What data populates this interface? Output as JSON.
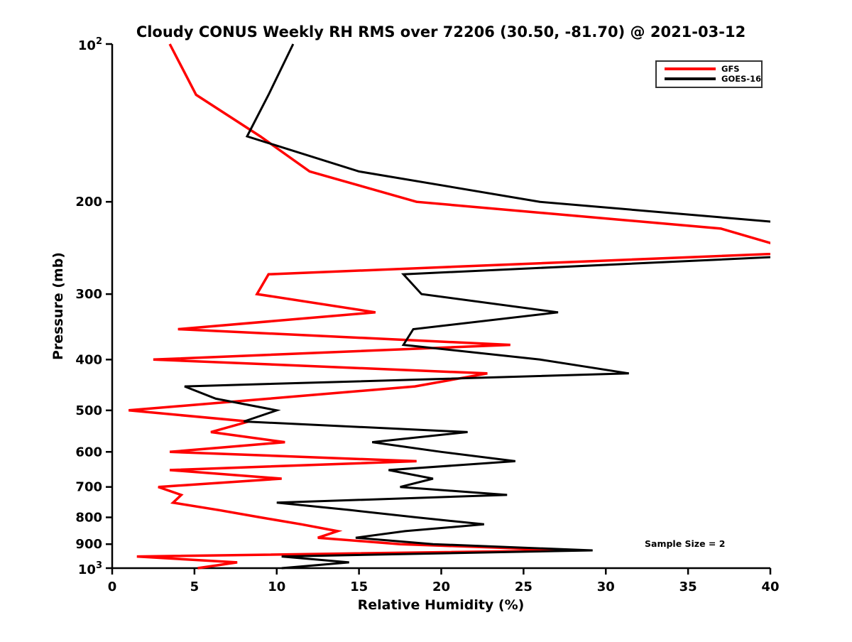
{
  "window": {
    "background": "#ffffff"
  },
  "chart_data": {
    "type": "line",
    "title": "Cloudy CONUS Weekly RH RMS over 72206 (30.50, -81.70) @ 2021-03-12",
    "xlabel": "Relative Humidity (%)",
    "ylabel": "Pressure (mb)",
    "x_axis": {
      "min": 0,
      "max": 40,
      "ticks": [
        0,
        5,
        10,
        15,
        20,
        25,
        30,
        35,
        40
      ]
    },
    "y_axis": {
      "scale": "log",
      "min": 100,
      "max": 1000,
      "inverted": true,
      "ticks": [
        100,
        200,
        300,
        400,
        500,
        600,
        700,
        800,
        900,
        1000
      ],
      "tick_labels": [
        "10^2",
        "200",
        "300",
        "400",
        "500",
        "600",
        "700",
        "800",
        "900",
        "10^3"
      ]
    },
    "grid": false,
    "legend_position": "top-right",
    "annotation": "Sample Size = 2",
    "pressure_levels_mb": [
      100,
      125,
      150,
      175,
      200,
      225,
      250,
      275,
      300,
      325,
      350,
      375,
      400,
      425,
      450,
      475,
      500,
      525,
      550,
      575,
      600,
      625,
      650,
      675,
      700,
      725,
      750,
      775,
      800,
      825,
      850,
      875,
      900,
      925,
      950,
      975,
      1000
    ],
    "series": [
      {
        "name": "GFS",
        "color": "#ff0000",
        "line_width": 3.5,
        "values": [
          3.5,
          5.1,
          9.0,
          12.0,
          18.5,
          37.0,
          42.0,
          9.5,
          8.8,
          16.0,
          4.0,
          24.2,
          2.5,
          22.8,
          18.4,
          9.5,
          1.0,
          8.3,
          6.0,
          10.5,
          3.5,
          18.5,
          3.5,
          10.3,
          2.8,
          4.2,
          3.7,
          6.5,
          9.0,
          11.5,
          13.7,
          12.5,
          17.5,
          28.0,
          1.5,
          7.6,
          5.2
        ]
      },
      {
        "name": "GOES-16",
        "color": "#000000",
        "line_width": 3.0,
        "values": [
          11.0,
          9.5,
          8.2,
          15.0,
          26.0,
          45.0,
          46.0,
          17.7,
          18.8,
          27.1,
          18.3,
          17.7,
          26.0,
          31.4,
          4.4,
          6.3,
          10.0,
          8.0,
          21.6,
          15.8,
          20.0,
          24.5,
          16.8,
          19.5,
          17.5,
          24.0,
          10.0,
          14.5,
          18.5,
          22.6,
          17.8,
          14.8,
          19.5,
          29.2,
          10.3,
          14.4,
          10.3
        ]
      }
    ]
  },
  "legend": {
    "entries": [
      {
        "label": "GFS",
        "color": "#ff0000"
      },
      {
        "label": "GOES-16",
        "color": "#000000"
      }
    ]
  },
  "annotation": {
    "text": "Sample Size = 2"
  }
}
